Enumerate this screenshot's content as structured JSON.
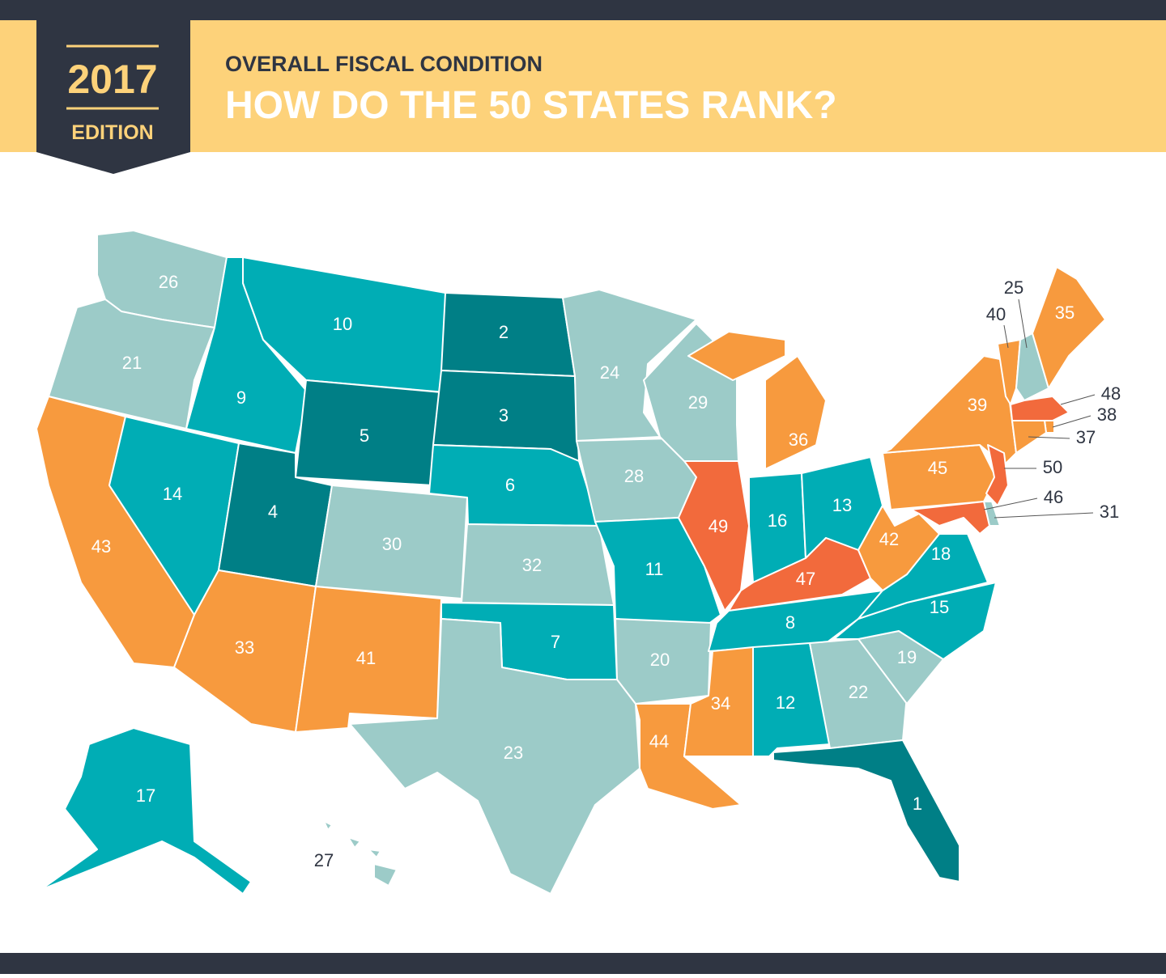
{
  "header": {
    "edition_year": "2017",
    "edition_label": "EDITION",
    "subtitle": "OVERALL FISCAL CONDITION",
    "title": "HOW DO THE 50 STATES RANK?"
  },
  "states": [
    {
      "rank": 26,
      "color": "#9ccbc8"
    },
    {
      "rank": 21,
      "color": "#9ccbc8"
    },
    {
      "rank": 43,
      "color": "#f79a3e"
    },
    {
      "rank": 14,
      "color": "#00adb5"
    },
    {
      "rank": 9,
      "color": "#00adb5"
    },
    {
      "rank": 10,
      "color": "#00adb5"
    },
    {
      "rank": 5,
      "color": "#007f86"
    },
    {
      "rank": 4,
      "color": "#007f86"
    },
    {
      "rank": 33,
      "color": "#f79a3e"
    },
    {
      "rank": 30,
      "color": "#9ccbc8"
    },
    {
      "rank": 41,
      "color": "#f79a3e"
    },
    {
      "rank": 2,
      "color": "#007f86"
    },
    {
      "rank": 3,
      "color": "#007f86"
    },
    {
      "rank": 6,
      "color": "#00adb5"
    },
    {
      "rank": 32,
      "color": "#9ccbc8"
    },
    {
      "rank": 7,
      "color": "#00adb5"
    },
    {
      "rank": 23,
      "color": "#9ccbc8"
    },
    {
      "rank": 24,
      "color": "#9ccbc8"
    },
    {
      "rank": 28,
      "color": "#9ccbc8"
    },
    {
      "rank": 11,
      "color": "#00adb5"
    },
    {
      "rank": 20,
      "color": "#9ccbc8"
    },
    {
      "rank": 44,
      "color": "#f79a3e"
    },
    {
      "rank": 29,
      "color": "#9ccbc8"
    },
    {
      "rank": 49,
      "color": "#f26a3c"
    },
    {
      "rank": 36,
      "color": "#f79a3e"
    },
    {
      "rank": 16,
      "color": "#00adb5"
    },
    {
      "rank": 13,
      "color": "#00adb5"
    },
    {
      "rank": 47,
      "color": "#f26a3c"
    },
    {
      "rank": 8,
      "color": "#00adb5"
    },
    {
      "rank": 34,
      "color": "#f79a3e"
    },
    {
      "rank": 12,
      "color": "#00adb5"
    },
    {
      "rank": 22,
      "color": "#9ccbc8"
    },
    {
      "rank": 1,
      "color": "#007f86"
    },
    {
      "rank": 19,
      "color": "#9ccbc8"
    },
    {
      "rank": 15,
      "color": "#00adb5"
    },
    {
      "rank": 18,
      "color": "#00adb5"
    },
    {
      "rank": 42,
      "color": "#f79a3e"
    },
    {
      "rank": 45,
      "color": "#f79a3e"
    },
    {
      "rank": 39,
      "color": "#f79a3e"
    },
    {
      "rank": 40,
      "color": "#f79a3e"
    },
    {
      "rank": 25,
      "color": "#9ccbc8"
    },
    {
      "rank": 35,
      "color": "#f79a3e"
    },
    {
      "rank": 48,
      "color": "#f26a3c"
    },
    {
      "rank": 38,
      "color": "#f79a3e"
    },
    {
      "rank": 37,
      "color": "#f79a3e"
    },
    {
      "rank": 50,
      "color": "#f26a3c"
    },
    {
      "rank": 31,
      "color": "#9ccbc8"
    },
    {
      "rank": 46,
      "color": "#f26a3c"
    },
    {
      "rank": 17,
      "color": "#00adb5"
    },
    {
      "rank": 27,
      "color": "#9ccbc8"
    }
  ]
}
